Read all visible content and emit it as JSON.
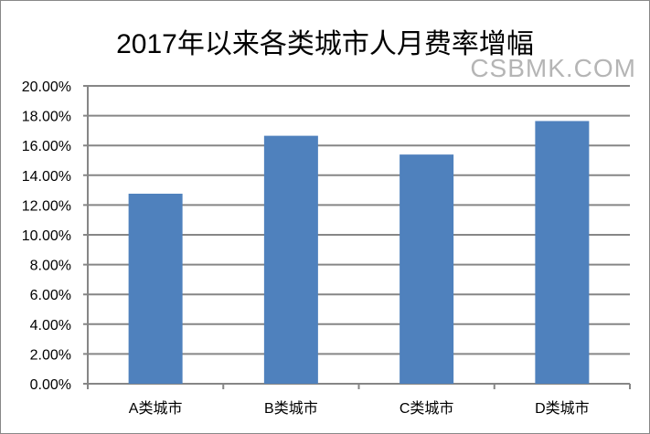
{
  "chart_data": {
    "type": "bar",
    "title": "2017年以来各类城市人月费率增幅",
    "categories": [
      "A类城市",
      "B类城市",
      "C类城市",
      "D类城市"
    ],
    "values": [
      12.76,
      16.65,
      15.39,
      17.64
    ],
    "value_unit": "%",
    "ylim": [
      0,
      20
    ],
    "yticks": [
      "0.00%",
      "2.00%",
      "4.00%",
      "6.00%",
      "8.00%",
      "10.00%",
      "12.00%",
      "14.00%",
      "16.00%",
      "18.00%",
      "20.00%"
    ],
    "grid": true,
    "legend": "none",
    "bar_color": "#4F81BD",
    "grid_color": "#868686"
  },
  "watermark": "CSBMK.COM"
}
